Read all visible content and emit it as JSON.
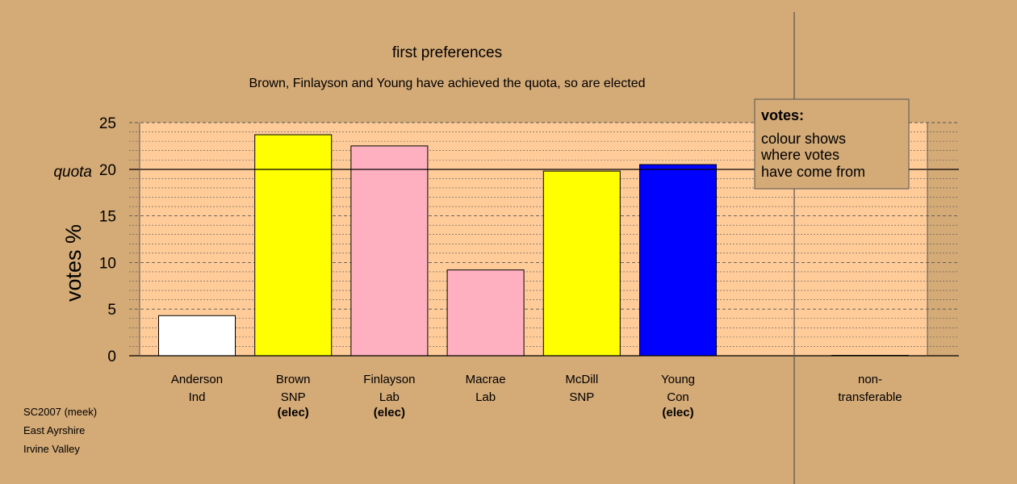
{
  "chart_data": {
    "type": "bar",
    "title": "first preferences",
    "subtitle": "Brown, Finlayson and Young have achieved the quota, so are elected",
    "ylabel": "votes %",
    "quota_label": "quota",
    "quota_value": 20,
    "ylim": [
      0,
      25
    ],
    "yticks": [
      "0",
      "5",
      "10",
      "15",
      "20",
      "25"
    ],
    "grid": true,
    "categories": [
      {
        "name": "Anderson",
        "party": "Ind",
        "elected": false,
        "value": 4.3,
        "color": "#ffffff"
      },
      {
        "name": "Brown",
        "party": "SNP",
        "elected": true,
        "value": 23.7,
        "color": "#ffff00"
      },
      {
        "name": "Finlayson",
        "party": "Lab",
        "elected": true,
        "value": 22.5,
        "color": "#ffb0c0"
      },
      {
        "name": "Macrae",
        "party": "Lab",
        "elected": false,
        "value": 9.2,
        "color": "#ffb0c0"
      },
      {
        "name": "McDill",
        "party": "SNP",
        "elected": false,
        "value": 19.8,
        "color": "#ffff00"
      },
      {
        "name": "Young",
        "party": "Con",
        "elected": true,
        "value": 20.5,
        "color": "#0000ff"
      }
    ],
    "elected_label": "(elec)",
    "nontransferable": {
      "line1": "non-",
      "line2": "transferable",
      "value": 0
    },
    "legend": {
      "title": "votes:",
      "lines": [
        "colour shows",
        "where votes",
        "have come from"
      ],
      "position": "top-right"
    },
    "colors": {
      "background": "#d4aa77",
      "plot_area": "#ffcc99"
    }
  },
  "footer": {
    "line1": "SC2007 (meek)",
    "line2": "East Ayrshire",
    "line3": "Irvine Valley"
  }
}
